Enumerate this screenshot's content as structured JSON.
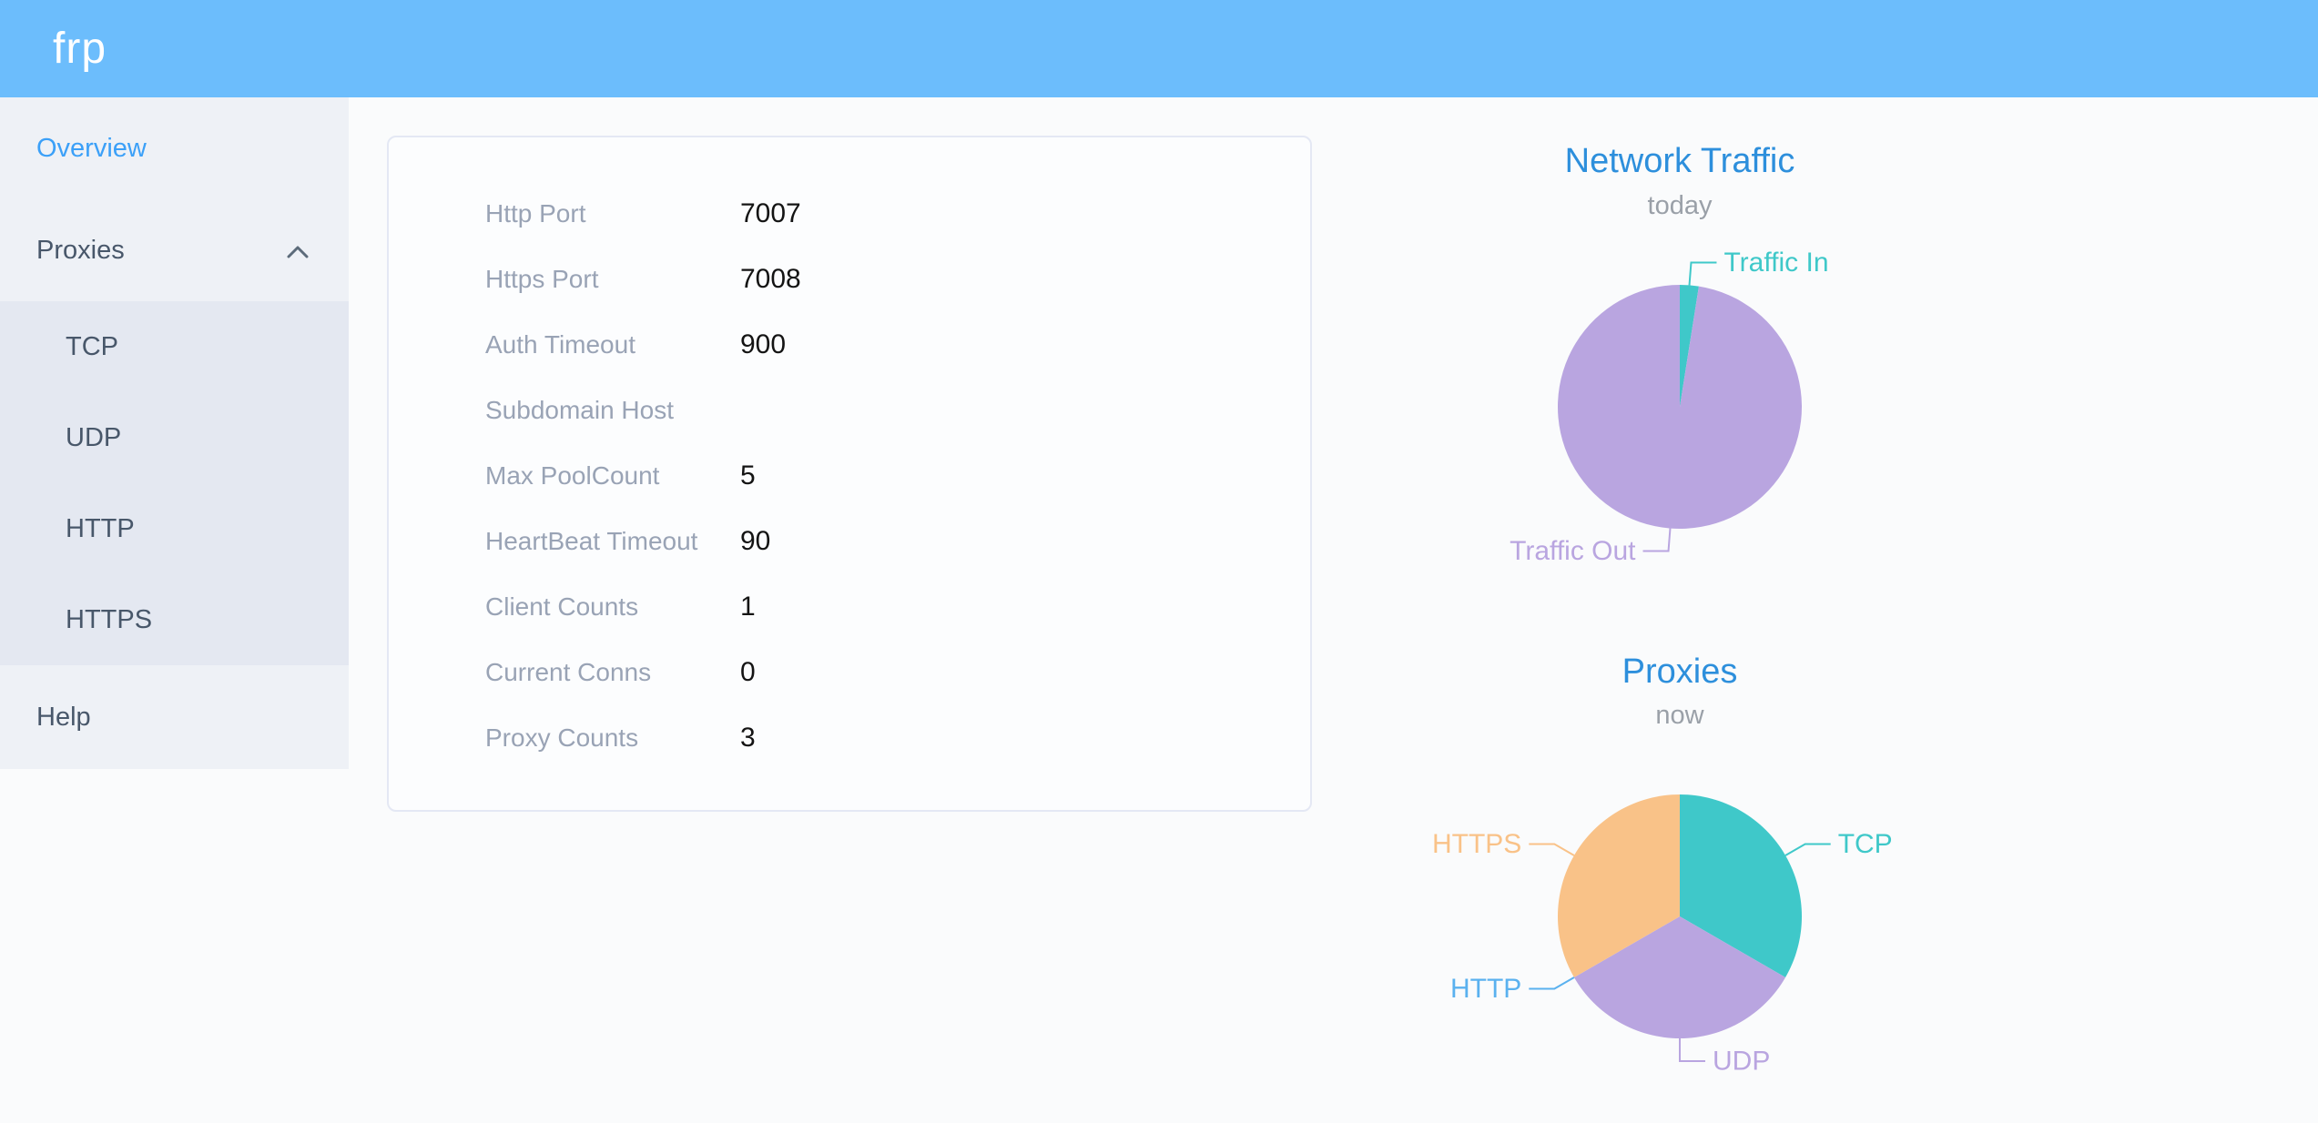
{
  "header": {
    "logo_text": "frp"
  },
  "sidebar": {
    "items": [
      {
        "label": "Overview",
        "state": "active"
      },
      {
        "label": "Proxies",
        "state": "expanded"
      },
      {
        "label": "TCP",
        "child_of": "Proxies"
      },
      {
        "label": "UDP",
        "child_of": "Proxies"
      },
      {
        "label": "HTTP",
        "child_of": "Proxies"
      },
      {
        "label": "HTTPS",
        "child_of": "Proxies"
      },
      {
        "label": "Help"
      }
    ]
  },
  "server_info": {
    "rows": [
      {
        "label": "Http Port",
        "value": "7007"
      },
      {
        "label": "Https Port",
        "value": "7008"
      },
      {
        "label": "Auth Timeout",
        "value": "900"
      },
      {
        "label": "Subdomain Host",
        "value": ""
      },
      {
        "label": "Max PoolCount",
        "value": "5"
      },
      {
        "label": "HeartBeat Timeout",
        "value": "90"
      },
      {
        "label": "Client Counts",
        "value": "1"
      },
      {
        "label": "Current Conns",
        "value": "0"
      },
      {
        "label": "Proxy Counts",
        "value": "3"
      }
    ]
  },
  "chart_data": [
    {
      "type": "pie",
      "title": "Network Traffic",
      "subtitle": "today",
      "legend_position": "callout-labels",
      "series": [
        {
          "name": "Traffic In",
          "value": 2.5,
          "color": "#3fc8c9"
        },
        {
          "name": "Traffic Out",
          "value": 97.5,
          "color": "#b9a5e0"
        }
      ],
      "value_unit": "percent-share-estimated"
    },
    {
      "type": "pie",
      "title": "Proxies",
      "subtitle": "now",
      "legend_position": "callout-labels",
      "series": [
        {
          "name": "TCP",
          "value": 1,
          "color": "#3fc8c9"
        },
        {
          "name": "UDP",
          "value": 1,
          "color": "#b9a5e0"
        },
        {
          "name": "HTTP",
          "value": 0,
          "color": "#5ab1ef"
        },
        {
          "name": "HTTPS",
          "value": 1,
          "color": "#f9c288"
        }
      ],
      "value_unit": "proxy-count"
    }
  ],
  "colors": {
    "header_bg": "#6cbdfc",
    "sidebar_bg": "#eef1f6",
    "submenu_bg": "#e4e8f1",
    "sidebar_text": "#48576a",
    "sidebar_active": "#3ba0f8",
    "chart_title_blue": "#2d8fdc",
    "chart_subtitle_gray": "#9aa0a8",
    "card_label_gray": "#99a3b5",
    "card_value_black": "#141414",
    "pie_teal": "#3fc8c9",
    "pie_purple": "#b9a5e0",
    "pie_blue": "#5ab1ef",
    "pie_orange": "#f9c288"
  }
}
